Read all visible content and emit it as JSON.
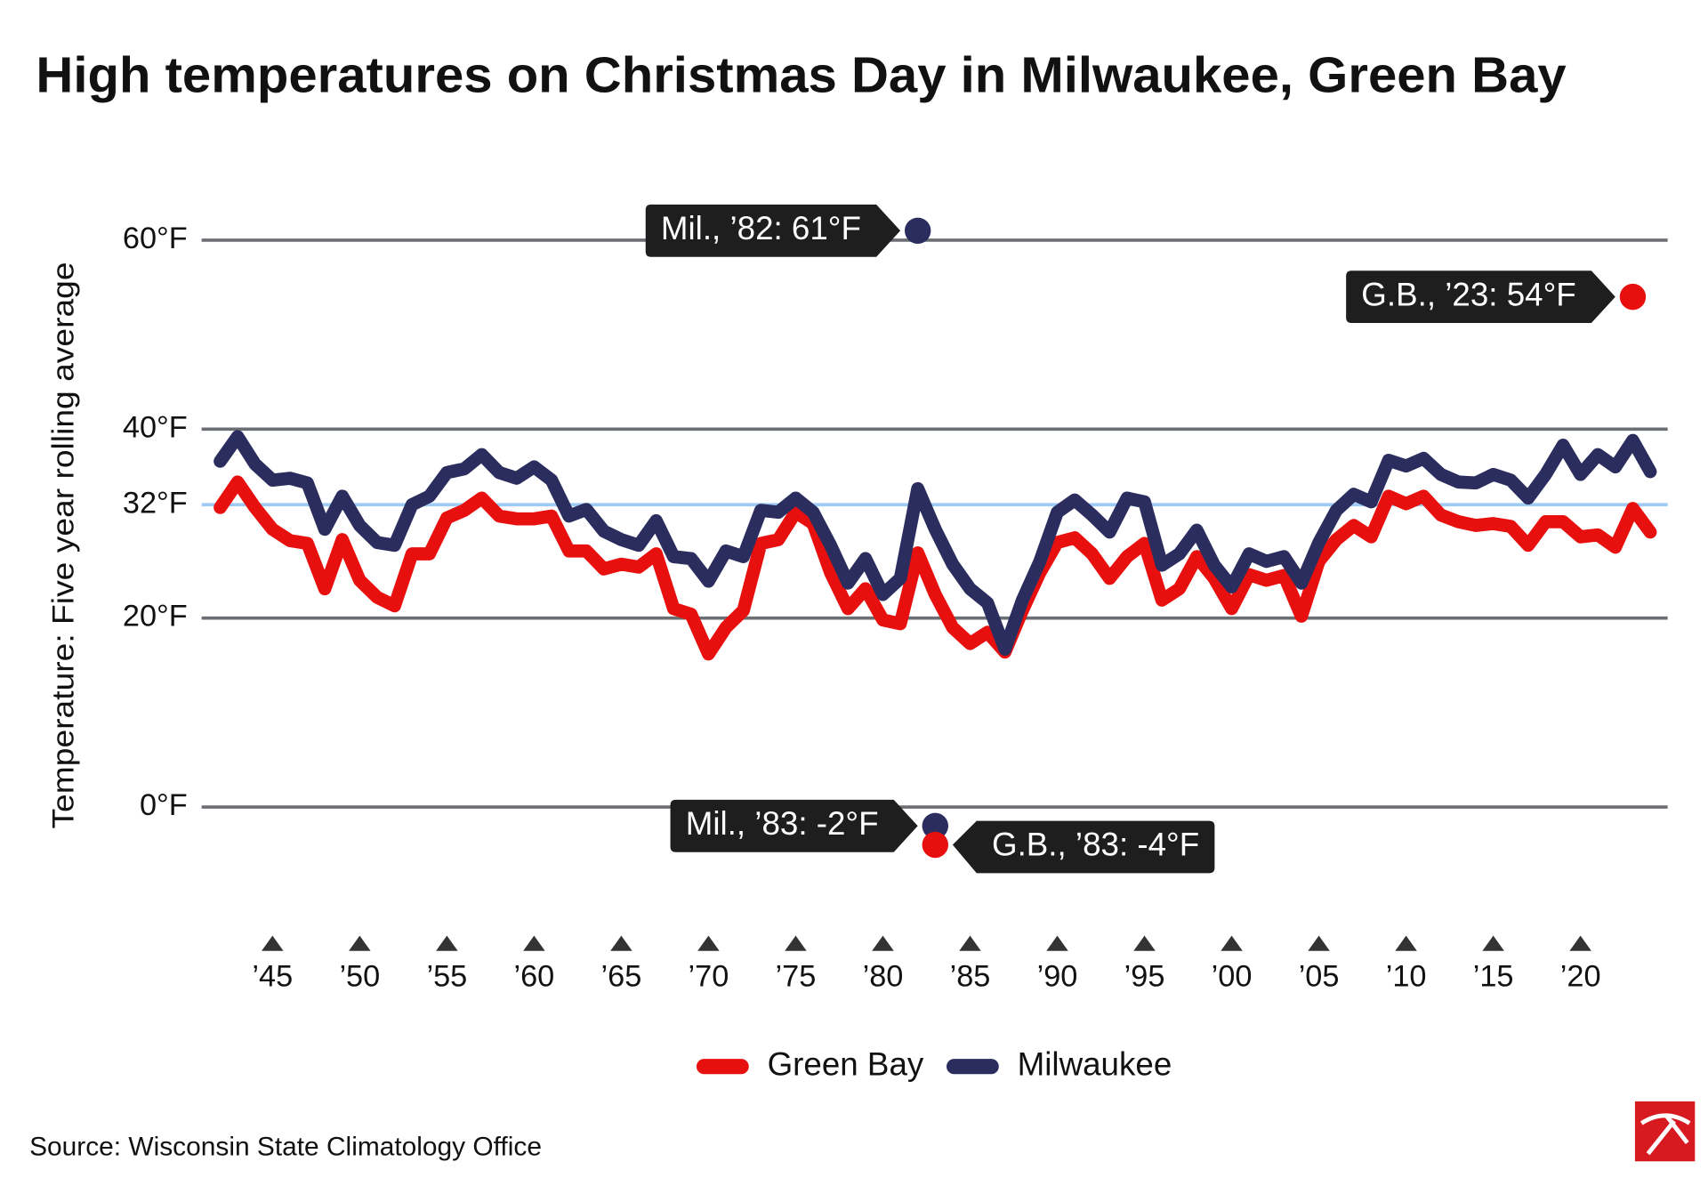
{
  "chart_data": {
    "type": "line",
    "title": "High temperatures on Christmas Day in Milwaukee, Green Bay",
    "y_label": "Temperature: Five year rolling average",
    "source": "Source: Wisconsin State Climatology Office",
    "x": [
      1942,
      1943,
      1944,
      1945,
      1946,
      1947,
      1948,
      1949,
      1950,
      1951,
      1952,
      1953,
      1954,
      1955,
      1956,
      1957,
      1958,
      1959,
      1960,
      1961,
      1962,
      1963,
      1964,
      1965,
      1966,
      1967,
      1968,
      1969,
      1970,
      1971,
      1972,
      1973,
      1974,
      1975,
      1976,
      1977,
      1978,
      1979,
      1980,
      1981,
      1982,
      1983,
      1984,
      1985,
      1986,
      1987,
      1988,
      1989,
      1990,
      1991,
      1992,
      1993,
      1994,
      1995,
      1996,
      1997,
      1998,
      1999,
      2000,
      2001,
      2002,
      2003,
      2004,
      2005,
      2006,
      2007,
      2008,
      2009,
      2010,
      2011,
      2012,
      2013,
      2014,
      2015,
      2016,
      2017,
      2018,
      2019,
      2020,
      2021,
      2022,
      2023,
      2024
    ],
    "series": [
      {
        "name": "Green Bay",
        "color": "#e8100f",
        "values": [
          31.7,
          34.4,
          31.7,
          29.4,
          28.2,
          27.9,
          23.1,
          28.3,
          24,
          22.2,
          21.3,
          26.8,
          26.8,
          30.6,
          31.4,
          32.7,
          30.8,
          30.5,
          30.5,
          30.8,
          27.1,
          27.1,
          25.2,
          25.7,
          25.4,
          26.8,
          21,
          20.4,
          16.2,
          19,
          20.8,
          27.9,
          28.3,
          31.2,
          30,
          24.8,
          21,
          23.1,
          19.8,
          19.4,
          26.9,
          22.5,
          19,
          17.3,
          18.5,
          16.4,
          20.8,
          24.8,
          28,
          28.5,
          26.8,
          24.2,
          26.5,
          27.9,
          21.9,
          23.1,
          26.5,
          24.2,
          21,
          24.6,
          24,
          24.5,
          20.2,
          26,
          28.3,
          29.8,
          28.6,
          32.9,
          32.1,
          32.9,
          30.9,
          30.2,
          29.8,
          30,
          29.7,
          27.7,
          30.2,
          30.2,
          28.6,
          28.8,
          27.5,
          31.6,
          29.1
        ]
      },
      {
        "name": "Milwaukee",
        "color": "#2b2d5e",
        "values": [
          36.6,
          39.2,
          36.3,
          34.6,
          34.8,
          34.3,
          29.4,
          32.9,
          29.8,
          28,
          27.7,
          32,
          32.9,
          35.4,
          35.8,
          37.3,
          35.4,
          34.8,
          36,
          34.6,
          30.8,
          31.5,
          29.2,
          28.3,
          27.7,
          30.3,
          26.5,
          26.3,
          23.9,
          27.1,
          26.5,
          31.4,
          31.2,
          32.7,
          31.2,
          27.7,
          23.7,
          26.3,
          22.5,
          24.2,
          33.7,
          29.4,
          25.7,
          23.1,
          21.6,
          16.7,
          21.9,
          26,
          31.2,
          32.5,
          30.9,
          29.1,
          32.7,
          32.3,
          25.6,
          26.8,
          29.3,
          25.6,
          23.3,
          26.8,
          26,
          26.5,
          23.7,
          28,
          31.4,
          33.1,
          32.3,
          36.7,
          36.1,
          36.9,
          35.2,
          34.4,
          34.3,
          35.2,
          34.6,
          32.7,
          35.2,
          38.3,
          35.2,
          37.3,
          36,
          38.8,
          35.5
        ]
      }
    ],
    "xlim": [
      1941,
      2025
    ],
    "xticks": [
      {
        "value": 1945,
        "label": "’45"
      },
      {
        "value": 1950,
        "label": "’50"
      },
      {
        "value": 1955,
        "label": "’55"
      },
      {
        "value": 1960,
        "label": "’60"
      },
      {
        "value": 1965,
        "label": "’65"
      },
      {
        "value": 1970,
        "label": "’70"
      },
      {
        "value": 1975,
        "label": "’75"
      },
      {
        "value": 1980,
        "label": "’80"
      },
      {
        "value": 1985,
        "label": "’85"
      },
      {
        "value": 1990,
        "label": "’90"
      },
      {
        "value": 1995,
        "label": "’95"
      },
      {
        "value": 2000,
        "label": "’00"
      },
      {
        "value": 2005,
        "label": "’05"
      },
      {
        "value": 2010,
        "label": "’10"
      },
      {
        "value": 2015,
        "label": "’15"
      },
      {
        "value": 2020,
        "label": "’20"
      }
    ],
    "ylim": [
      -10,
      65
    ],
    "yticks": [
      {
        "value": 0,
        "label": "0°F"
      },
      {
        "value": 20,
        "label": "20°F"
      },
      {
        "value": 32,
        "label": "32°F",
        "color": "#9ecbf5"
      },
      {
        "value": 40,
        "label": "40°F"
      },
      {
        "value": 60,
        "label": "60°F"
      }
    ],
    "grid": true,
    "grid_color": "#6b6e72",
    "annotations": [
      {
        "label": "Mil., ’82: 61°F",
        "x": 1982,
        "value": 61,
        "series": 1
      },
      {
        "label": "G.B., ’23: 54°F",
        "x": 2023,
        "value": 54,
        "series": 0
      },
      {
        "label": "Mil., ’83: -2°F",
        "x": 1983,
        "value": -2,
        "series": 1
      },
      {
        "label": "G.B., ’83: -4°F",
        "x": 1983,
        "value": -4,
        "series": 0
      }
    ]
  }
}
